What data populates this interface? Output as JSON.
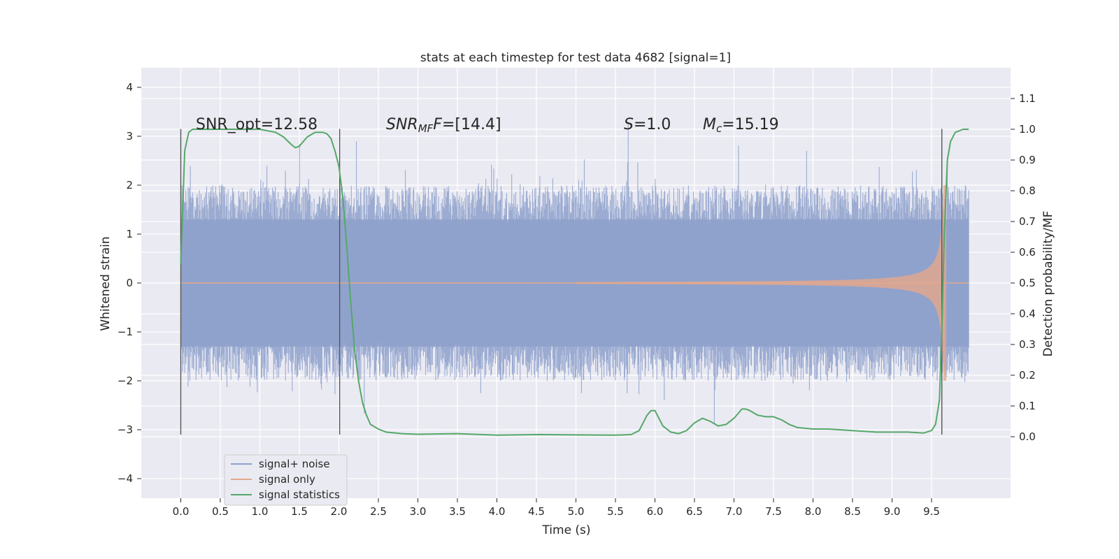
{
  "chart_data": {
    "type": "line",
    "title": "stats at each timestep for test data 4682 [signal=1]",
    "xlabel": "Time (s)",
    "ylabel_left": "Whitened strain",
    "ylabel_right": "Detection probability/MF",
    "xlim": [
      -0.5,
      10.5
    ],
    "ylim_left": [
      -4.4,
      4.4
    ],
    "ylim_right": [
      -0.2,
      1.2
    ],
    "x_ticks": [
      "0.0",
      "0.5",
      "1.0",
      "1.5",
      "2.0",
      "2.5",
      "3.0",
      "3.5",
      "4.0",
      "4.5",
      "5.0",
      "5.5",
      "6.0",
      "6.5",
      "7.0",
      "7.5",
      "8.0",
      "8.5",
      "9.0",
      "9.5"
    ],
    "x_tick_values": [
      0.0,
      0.5,
      1.0,
      1.5,
      2.0,
      2.5,
      3.0,
      3.5,
      4.0,
      4.5,
      5.0,
      5.5,
      6.0,
      6.5,
      7.0,
      7.5,
      8.0,
      8.5,
      9.0,
      9.5
    ],
    "y_ticks_left": [
      "4",
      "3",
      "2",
      "1",
      "0",
      "−1",
      "−2",
      "−3",
      "−4"
    ],
    "y_tick_values_left": [
      4,
      3,
      2,
      1,
      0,
      -1,
      -2,
      -3,
      -4
    ],
    "y_ticks_right": [
      "1.1",
      "1.0",
      "0.9",
      "0.8",
      "0.7",
      "0.6",
      "0.5",
      "0.4",
      "0.3",
      "0.2",
      "0.1",
      "0.0"
    ],
    "y_tick_values_right": [
      1.1,
      1.0,
      0.9,
      0.8,
      0.7,
      0.6,
      0.5,
      0.4,
      0.3,
      0.2,
      0.1,
      0.0
    ],
    "legend": {
      "placement": "lower-left",
      "entries": [
        {
          "label": "signal+ noise",
          "color": "#8da0cb"
        },
        {
          "label": "signal only",
          "color": "#e5a88b"
        },
        {
          "label": "signal statistics",
          "color": "#55a868"
        }
      ]
    },
    "annotations": {
      "snr_opt": "SNR_opt=12.58",
      "snr_mf_main": "SNR",
      "snr_mf_sub": "MF",
      "snr_mf_value": "=[14.4]",
      "s_sym": "S",
      "s_value": "=1.0",
      "mc_sym": "M",
      "mc_sub": "c",
      "mc_value": "=15.19"
    },
    "vertical_markers": [
      0.0,
      2.01,
      9.63
    ],
    "vertical_marker_range": [
      -3.1,
      3.15
    ],
    "series": [
      {
        "name": "signal statistics",
        "axis": "right",
        "color": "#55a868",
        "x": [
          0.0,
          0.05,
          0.1,
          0.15,
          0.2,
          0.3,
          0.5,
          0.8,
          1.0,
          1.1,
          1.2,
          1.3,
          1.4,
          1.45,
          1.5,
          1.55,
          1.6,
          1.7,
          1.8,
          1.85,
          1.9,
          1.95,
          2.0,
          2.05,
          2.1,
          2.15,
          2.2,
          2.25,
          2.3,
          2.35,
          2.4,
          2.5,
          2.6,
          2.8,
          3.0,
          3.5,
          4.0,
          4.5,
          5.0,
          5.5,
          5.7,
          5.8,
          5.9,
          5.95,
          6.0,
          6.05,
          6.1,
          6.2,
          6.3,
          6.4,
          6.5,
          6.6,
          6.7,
          6.8,
          6.9,
          7.0,
          7.1,
          7.15,
          7.2,
          7.3,
          7.4,
          7.5,
          7.6,
          7.7,
          7.8,
          8.0,
          8.2,
          8.5,
          8.8,
          9.0,
          9.2,
          9.4,
          9.5,
          9.55,
          9.6,
          9.63,
          9.66,
          9.7,
          9.74,
          9.8,
          9.9,
          9.97
        ],
        "values": [
          0.56,
          0.93,
          0.99,
          1.0,
          1.0,
          1.0,
          1.0,
          1.0,
          1.0,
          0.995,
          0.99,
          0.975,
          0.95,
          0.94,
          0.945,
          0.96,
          0.975,
          0.99,
          0.99,
          0.985,
          0.97,
          0.93,
          0.88,
          0.78,
          0.62,
          0.44,
          0.28,
          0.18,
          0.11,
          0.07,
          0.04,
          0.025,
          0.015,
          0.01,
          0.008,
          0.01,
          0.005,
          0.007,
          0.006,
          0.005,
          0.007,
          0.02,
          0.07,
          0.085,
          0.085,
          0.06,
          0.035,
          0.015,
          0.01,
          0.02,
          0.045,
          0.06,
          0.05,
          0.035,
          0.04,
          0.06,
          0.09,
          0.09,
          0.085,
          0.07,
          0.065,
          0.065,
          0.055,
          0.04,
          0.03,
          0.025,
          0.025,
          0.02,
          0.015,
          0.015,
          0.015,
          0.012,
          0.02,
          0.04,
          0.12,
          0.35,
          0.65,
          0.9,
          0.96,
          0.99,
          1.0,
          1.0
        ]
      }
    ]
  }
}
